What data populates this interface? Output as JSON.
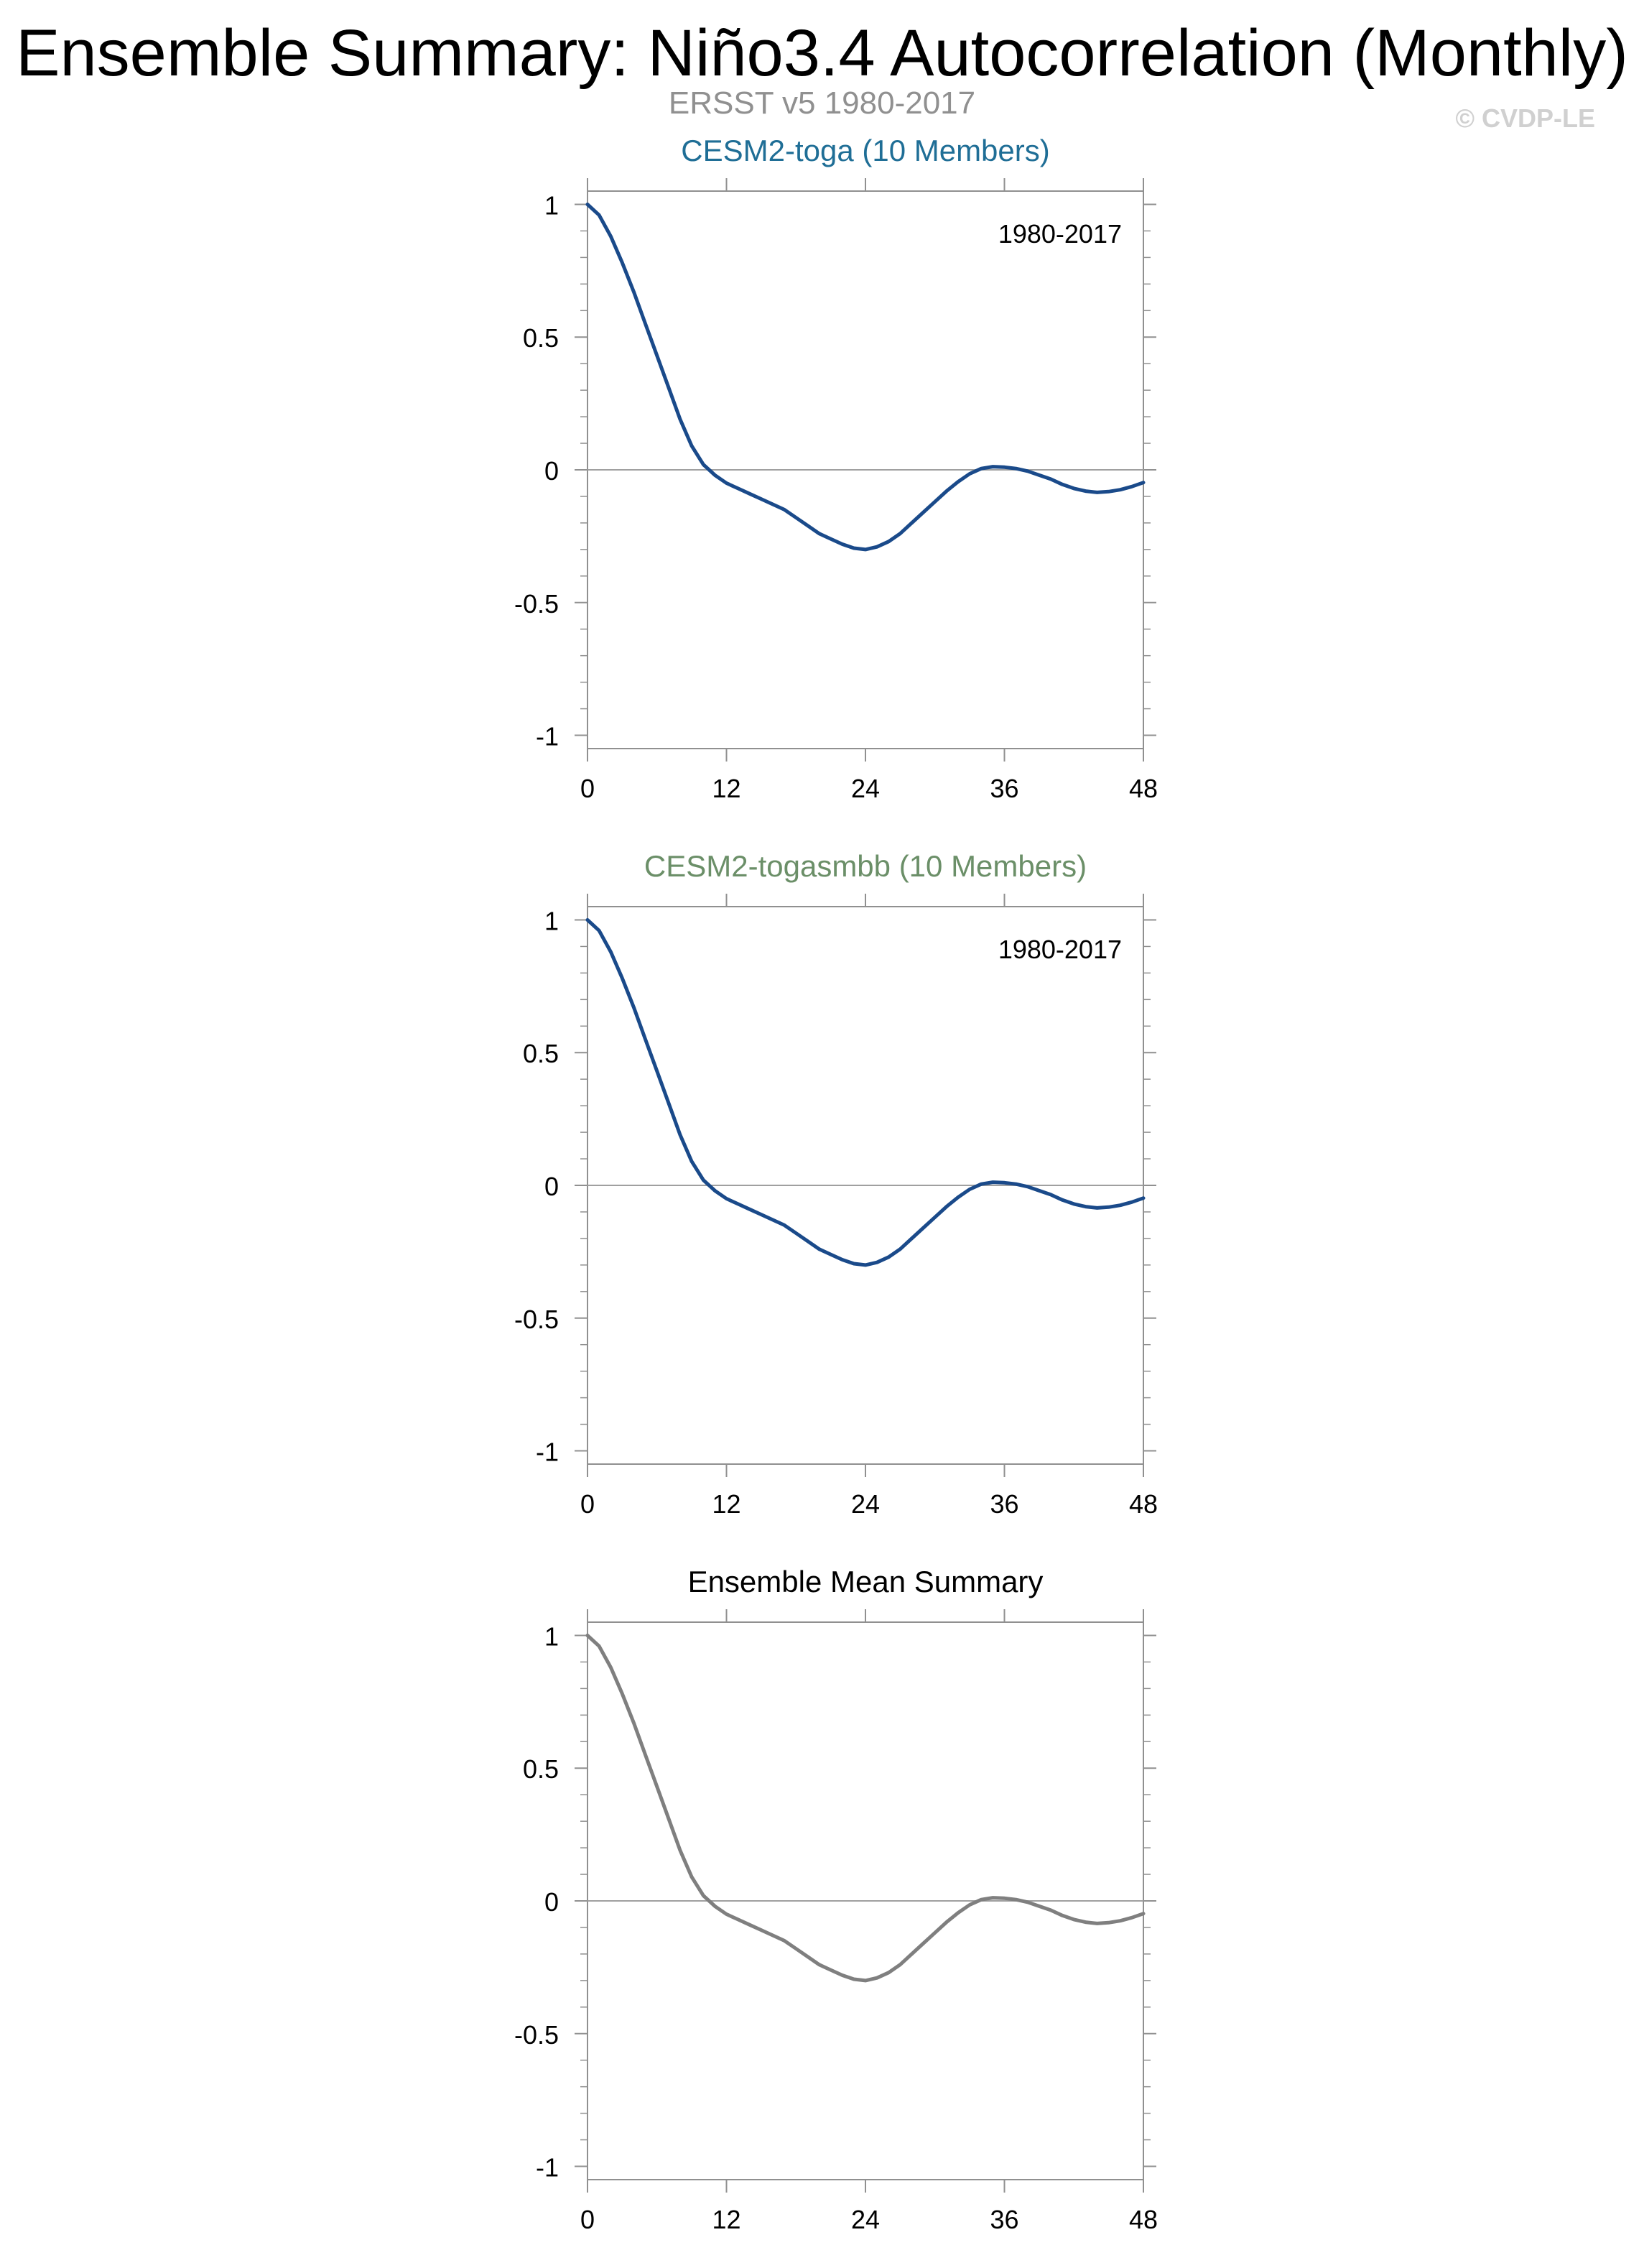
{
  "header": {
    "title": "Ensemble Summary: Niño3.4 Autocorrelation (Monthly)",
    "subtitle": "ERSST v5 1980-2017",
    "copyright": "© CVDP-LE"
  },
  "colors": {
    "panel1_title": "#1f6e96",
    "panel2_title": "#6b8f68",
    "panel3_title": "#000000",
    "line_blue": "#1a4a8a",
    "line_gray": "#7f7f7f",
    "zero_line": "#a0a0a0",
    "axis": "#909090"
  },
  "chart_data": [
    {
      "type": "line",
      "title": "CESM2-toga (10 Members)",
      "annotation": "1980-2017",
      "color": "blue",
      "xticks": [
        0,
        12,
        24,
        36,
        48
      ],
      "yticks": [
        -1,
        -0.5,
        0,
        0.5,
        1
      ],
      "ytick_labels": [
        "-1",
        "-0.5",
        "0",
        "0.5",
        "1"
      ],
      "xlim": [
        0,
        48
      ],
      "ylim": [
        -1.05,
        1.05
      ],
      "x": [
        0,
        1,
        2,
        3,
        4,
        5,
        6,
        7,
        8,
        9,
        10,
        11,
        12,
        13,
        14,
        15,
        16,
        17,
        18,
        19,
        20,
        21,
        22,
        23,
        24,
        25,
        26,
        27,
        28,
        29,
        30,
        31,
        32,
        33,
        34,
        35,
        36,
        37,
        38,
        39,
        40,
        41,
        42,
        43,
        44,
        45,
        46,
        47,
        48
      ],
      "y": [
        1.0,
        0.96,
        0.88,
        0.78,
        0.67,
        0.55,
        0.43,
        0.31,
        0.19,
        0.09,
        0.02,
        -0.02,
        -0.05,
        -0.07,
        -0.09,
        -0.11,
        -0.13,
        -0.15,
        -0.18,
        -0.21,
        -0.24,
        -0.26,
        -0.28,
        -0.295,
        -0.3,
        -0.29,
        -0.27,
        -0.24,
        -0.2,
        -0.16,
        -0.12,
        -0.08,
        -0.045,
        -0.015,
        0.005,
        0.012,
        0.01,
        0.005,
        -0.005,
        -0.02,
        -0.035,
        -0.055,
        -0.07,
        -0.08,
        -0.085,
        -0.082,
        -0.075,
        -0.063,
        -0.048
      ]
    },
    {
      "type": "line",
      "title": "CESM2-togasmbb (10 Members)",
      "annotation": "1980-2017",
      "color": "blue",
      "xticks": [
        0,
        12,
        24,
        36,
        48
      ],
      "yticks": [
        -1,
        -0.5,
        0,
        0.5,
        1
      ],
      "ytick_labels": [
        "-1",
        "-0.5",
        "0",
        "0.5",
        "1"
      ],
      "xlim": [
        0,
        48
      ],
      "ylim": [
        -1.05,
        1.05
      ],
      "x": [
        0,
        1,
        2,
        3,
        4,
        5,
        6,
        7,
        8,
        9,
        10,
        11,
        12,
        13,
        14,
        15,
        16,
        17,
        18,
        19,
        20,
        21,
        22,
        23,
        24,
        25,
        26,
        27,
        28,
        29,
        30,
        31,
        32,
        33,
        34,
        35,
        36,
        37,
        38,
        39,
        40,
        41,
        42,
        43,
        44,
        45,
        46,
        47,
        48
      ],
      "y": [
        1.0,
        0.96,
        0.88,
        0.78,
        0.67,
        0.55,
        0.43,
        0.31,
        0.19,
        0.09,
        0.02,
        -0.02,
        -0.05,
        -0.07,
        -0.09,
        -0.11,
        -0.13,
        -0.15,
        -0.18,
        -0.21,
        -0.24,
        -0.26,
        -0.28,
        -0.295,
        -0.3,
        -0.29,
        -0.27,
        -0.24,
        -0.2,
        -0.16,
        -0.12,
        -0.08,
        -0.045,
        -0.015,
        0.005,
        0.012,
        0.01,
        0.005,
        -0.005,
        -0.02,
        -0.035,
        -0.055,
        -0.07,
        -0.08,
        -0.085,
        -0.082,
        -0.075,
        -0.063,
        -0.048
      ]
    },
    {
      "type": "line",
      "title": "Ensemble Mean Summary",
      "annotation": "",
      "color": "gray",
      "xticks": [
        0,
        12,
        24,
        36,
        48
      ],
      "yticks": [
        -1,
        -0.5,
        0,
        0.5,
        1
      ],
      "ytick_labels": [
        "-1",
        "-0.5",
        "0",
        "0.5",
        "1"
      ],
      "xlim": [
        0,
        48
      ],
      "ylim": [
        -1.05,
        1.05
      ],
      "x": [
        0,
        1,
        2,
        3,
        4,
        5,
        6,
        7,
        8,
        9,
        10,
        11,
        12,
        13,
        14,
        15,
        16,
        17,
        18,
        19,
        20,
        21,
        22,
        23,
        24,
        25,
        26,
        27,
        28,
        29,
        30,
        31,
        32,
        33,
        34,
        35,
        36,
        37,
        38,
        39,
        40,
        41,
        42,
        43,
        44,
        45,
        46,
        47,
        48
      ],
      "y": [
        1.0,
        0.96,
        0.88,
        0.78,
        0.67,
        0.55,
        0.43,
        0.31,
        0.19,
        0.09,
        0.02,
        -0.02,
        -0.05,
        -0.07,
        -0.09,
        -0.11,
        -0.13,
        -0.15,
        -0.18,
        -0.21,
        -0.24,
        -0.26,
        -0.28,
        -0.295,
        -0.3,
        -0.29,
        -0.27,
        -0.24,
        -0.2,
        -0.16,
        -0.12,
        -0.08,
        -0.045,
        -0.015,
        0.005,
        0.012,
        0.01,
        0.005,
        -0.005,
        -0.02,
        -0.035,
        -0.055,
        -0.07,
        -0.08,
        -0.085,
        -0.082,
        -0.075,
        -0.063,
        -0.048
      ]
    }
  ]
}
